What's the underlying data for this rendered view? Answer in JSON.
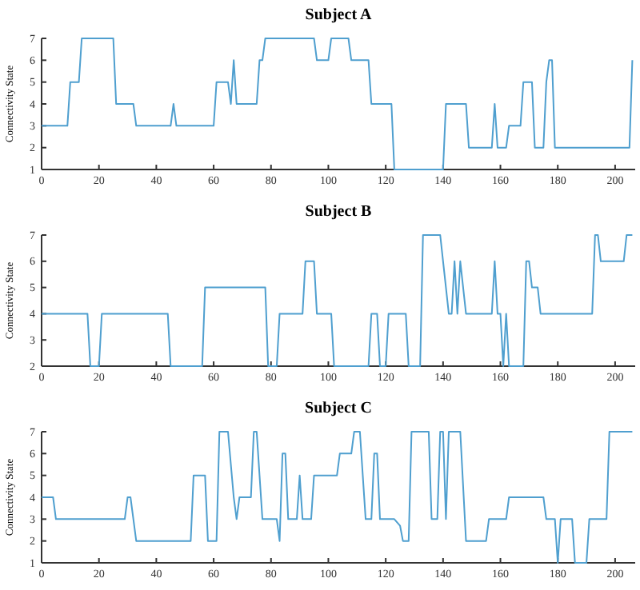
{
  "chart_data": [
    {
      "type": "line",
      "title": "Subject A",
      "ylabel": "Connectivity State",
      "xlim": [
        0,
        207
      ],
      "xticks": [
        0,
        20,
        40,
        60,
        80,
        100,
        120,
        140,
        160,
        180,
        200
      ],
      "ylim": [
        1,
        7
      ],
      "yticks": [
        1,
        2,
        3,
        4,
        5,
        6,
        7
      ],
      "series": [
        {
          "color": "#4f9fcf",
          "x": [
            0,
            9,
            10,
            13,
            14,
            25,
            26,
            32,
            33,
            45,
            46,
            47,
            60,
            61,
            65,
            66,
            67,
            68,
            75,
            76,
            77,
            78,
            95,
            96,
            100,
            101,
            107,
            108,
            114,
            115,
            122,
            123,
            140,
            141,
            148,
            149,
            157,
            158,
            159,
            162,
            163,
            167,
            168,
            171,
            172,
            175,
            176,
            177,
            178,
            179,
            205,
            206
          ],
          "values": [
            3,
            3,
            5,
            5,
            7,
            7,
            4,
            4,
            3,
            3,
            4,
            3,
            3,
            5,
            5,
            4,
            6,
            4,
            4,
            6,
            6,
            7,
            7,
            6,
            6,
            7,
            7,
            6,
            6,
            4,
            4,
            1,
            1,
            4,
            4,
            2,
            2,
            4,
            2,
            2,
            3,
            3,
            5,
            5,
            2,
            2,
            5,
            6,
            6,
            2,
            2,
            6
          ]
        }
      ]
    },
    {
      "type": "line",
      "title": "Subject B",
      "ylabel": "Connectivity State",
      "xlim": [
        0,
        207
      ],
      "xticks": [
        0,
        20,
        40,
        60,
        80,
        100,
        120,
        140,
        160,
        180,
        200
      ],
      "ylim": [
        2,
        7
      ],
      "yticks": [
        2,
        3,
        4,
        5,
        6,
        7
      ],
      "series": [
        {
          "color": "#4f9fcf",
          "x": [
            0,
            16,
            17,
            20,
            21,
            44,
            45,
            56,
            57,
            78,
            79,
            82,
            83,
            91,
            92,
            95,
            96,
            101,
            102,
            114,
            115,
            117,
            118,
            120,
            121,
            127,
            128,
            132,
            133,
            139,
            140,
            142,
            143,
            144,
            145,
            146,
            148,
            157,
            158,
            159,
            160,
            161,
            162,
            163,
            168,
            169,
            170,
            171,
            173,
            174,
            192,
            193,
            194,
            195,
            203,
            204,
            206
          ],
          "values": [
            4,
            4,
            2,
            2,
            4,
            4,
            2,
            2,
            5,
            5,
            2,
            2,
            4,
            4,
            6,
            6,
            4,
            4,
            2,
            2,
            4,
            4,
            2,
            2,
            4,
            4,
            2,
            2,
            7,
            7,
            6,
            4,
            4,
            6,
            4,
            6,
            4,
            4,
            6,
            4,
            4,
            2,
            4,
            2,
            2,
            6,
            6,
            5,
            5,
            4,
            4,
            7,
            7,
            6,
            6,
            7,
            7
          ]
        }
      ]
    },
    {
      "type": "line",
      "title": "Subject C",
      "ylabel": "Connectivity State",
      "xlim": [
        0,
        207
      ],
      "xticks": [
        0,
        20,
        40,
        60,
        80,
        100,
        120,
        140,
        160,
        180,
        200
      ],
      "ylim": [
        1,
        7
      ],
      "yticks": [
        1,
        2,
        3,
        4,
        5,
        6,
        7
      ],
      "series": [
        {
          "color": "#4f9fcf",
          "x": [
            0,
            4,
            5,
            29,
            30,
            31,
            33,
            52,
            53,
            57,
            58,
            61,
            62,
            65,
            67,
            68,
            69,
            73,
            74,
            75,
            77,
            82,
            83,
            84,
            85,
            86,
            89,
            90,
            91,
            94,
            95,
            103,
            104,
            108,
            109,
            111,
            113,
            115,
            116,
            117,
            118,
            123,
            125,
            126,
            128,
            129,
            135,
            136,
            138,
            139,
            140,
            141,
            142,
            143,
            146,
            148,
            155,
            156,
            162,
            163,
            175,
            176,
            179,
            180,
            181,
            185,
            186,
            190,
            191,
            197,
            198,
            206
          ],
          "values": [
            4,
            4,
            3,
            3,
            4,
            4,
            2,
            2,
            5,
            5,
            2,
            2,
            7,
            7,
            4,
            3,
            4,
            4,
            7,
            7,
            3,
            3,
            2,
            6,
            6,
            3,
            3,
            5,
            3,
            3,
            5,
            5,
            6,
            6,
            7,
            7,
            3,
            3,
            6,
            6,
            3,
            3,
            2.7,
            2,
            2,
            7,
            7,
            3,
            3,
            7,
            7,
            3,
            7,
            7,
            7,
            2,
            2,
            3,
            3,
            4,
            4,
            3,
            3,
            1,
            3,
            3,
            1,
            1,
            3,
            3,
            7,
            7
          ]
        }
      ]
    }
  ]
}
